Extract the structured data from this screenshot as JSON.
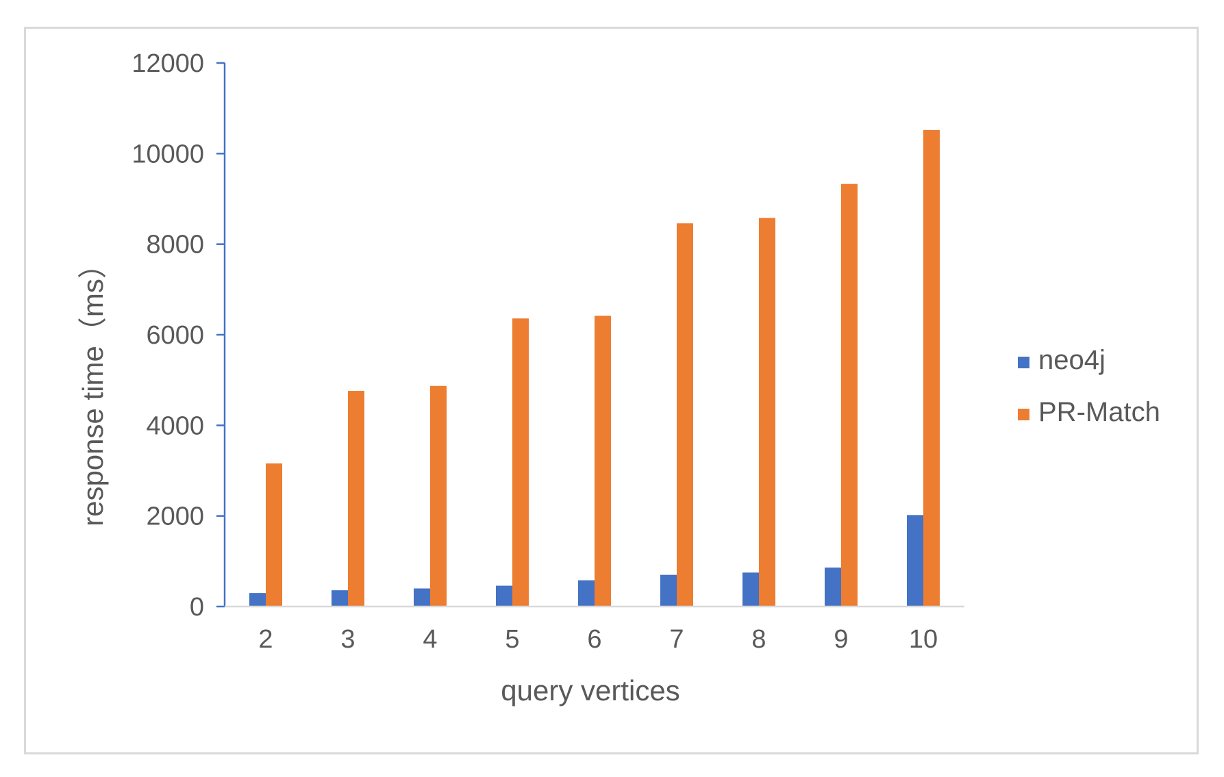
{
  "chart_data": {
    "type": "bar",
    "xlabel": "query vertices",
    "ylabel": "response time（ms）",
    "ylim": [
      0,
      12000
    ],
    "yticks": [
      0,
      2000,
      4000,
      6000,
      8000,
      10000,
      12000
    ],
    "categories": [
      "2",
      "3",
      "4",
      "5",
      "6",
      "7",
      "8",
      "9",
      "10"
    ],
    "series": [
      {
        "name": "neo4j",
        "color": "#4472c4",
        "values": [
          300,
          360,
          400,
          460,
          580,
          700,
          750,
          860,
          2020
        ]
      },
      {
        "name": "PR-Match",
        "color": "#ed7d31",
        "values": [
          3160,
          4760,
          4870,
          6360,
          6420,
          8460,
          8580,
          9330,
          10520
        ]
      }
    ],
    "legend": "right",
    "grid": false
  }
}
